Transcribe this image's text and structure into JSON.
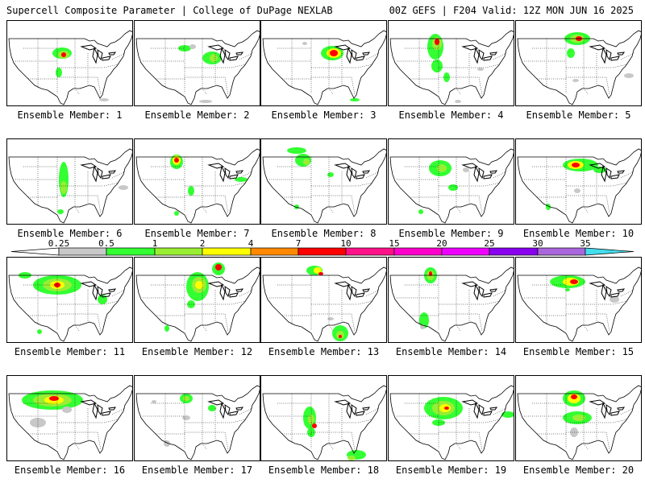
{
  "header": {
    "title": "Supercell Composite Parameter | College of DuPage NEXLAB",
    "run_info": "00Z GEFS | F204 Valid: 12Z MON JUN 16 2025"
  },
  "members": [
    "Ensemble Member: 1",
    "Ensemble Member: 2",
    "Ensemble Member: 3",
    "Ensemble Member: 4",
    "Ensemble Member: 5",
    "Ensemble Member: 6",
    "Ensemble Member: 7",
    "Ensemble Member: 8",
    "Ensemble Member: 9",
    "Ensemble Member: 10",
    "Ensemble Member: 11",
    "Ensemble Member: 12",
    "Ensemble Member: 13",
    "Ensemble Member: 14",
    "Ensemble Member: 15",
    "Ensemble Member: 16",
    "Ensemble Member: 17",
    "Ensemble Member: 18",
    "Ensemble Member: 19",
    "Ensemble Member: 20"
  ],
  "colorbar": {
    "labels": [
      "0.25",
      "0.5",
      "1",
      "2",
      "4",
      "7",
      "10",
      "15",
      "20",
      "25",
      "30",
      "35"
    ],
    "colors": [
      "#c8c8c8",
      "#33ff33",
      "#99ee33",
      "#ffff00",
      "#ff8800",
      "#ff0000",
      "#ff1188",
      "#ff00cc",
      "#ee00ff",
      "#8800ee",
      "#aa66dd",
      "#44ddee"
    ]
  },
  "fill_colors": {
    "gray": "#c8c8c8",
    "green": "#33ff33",
    "lime": "#99ee33",
    "yellow": "#ffff00",
    "orange": "#ff8800",
    "red": "#ff0000",
    "magenta": "#ff1188"
  }
}
